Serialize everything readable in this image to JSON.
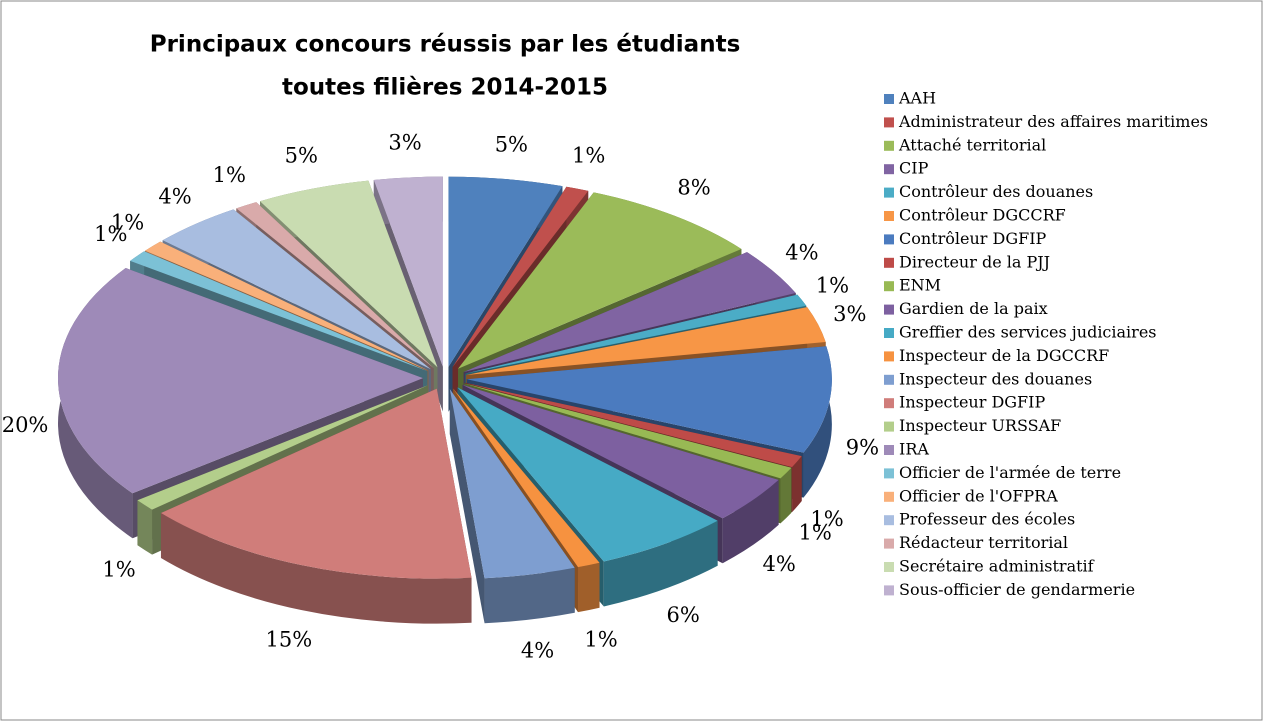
{
  "chart_data": {
    "type": "pie",
    "title": [
      "Principaux concours réussis par les étudiants",
      "toutes filières 2014-2015"
    ],
    "categories": [
      "AAH",
      "Administrateur des affaires maritimes",
      "Attaché territorial",
      "CIP",
      "Contrôleur des douanes",
      "Contrôleur DGCCRF",
      "Contrôleur DGFIP",
      "Directeur de la PJJ",
      "ENM",
      "Gardien de la paix",
      "Greffier des services judiciaires",
      "Inspecteur de la DGCCRF",
      "Inspecteur des douanes",
      "Inspecteur DGFIP",
      "Inspecteur URSSAF",
      "IRA",
      "Officier de l'armée de terre",
      "Officier de l'OFPRA",
      "Professeur des écoles",
      "Rédacteur territorial",
      "Secrétaire administratif",
      "Sous-officier de gendarmerie"
    ],
    "values": [
      5,
      1,
      8,
      4,
      1,
      3,
      9,
      1,
      1,
      4,
      6,
      1,
      4,
      15,
      1,
      20,
      1,
      1,
      4,
      1,
      5,
      3
    ],
    "value_labels": [
      "5%",
      "1%",
      "8%",
      "4%",
      "1%",
      "3%",
      "9%",
      "1%",
      "1%",
      "4%",
      "6%",
      "1%",
      "4%",
      "15%",
      "1%",
      "20%",
      "1%",
      "1%",
      "4%",
      "1%",
      "5%",
      "3%"
    ],
    "colors": [
      "#4F81BD",
      "#C0504D",
      "#9BBB59",
      "#8064A2",
      "#4BACC6",
      "#F79646",
      "#4B7BBF",
      "#BE4B48",
      "#98B954",
      "#7D60A0",
      "#46AAC5",
      "#F69240",
      "#7E9ED0",
      "#D07D7A",
      "#B3CE8B",
      "#9E8AB8",
      "#7CC1D6",
      "#F9B07A",
      "#A8BDE0",
      "#D9AAAA",
      "#C9DCB1",
      "#BFB1D0"
    ],
    "legend": "right"
  }
}
